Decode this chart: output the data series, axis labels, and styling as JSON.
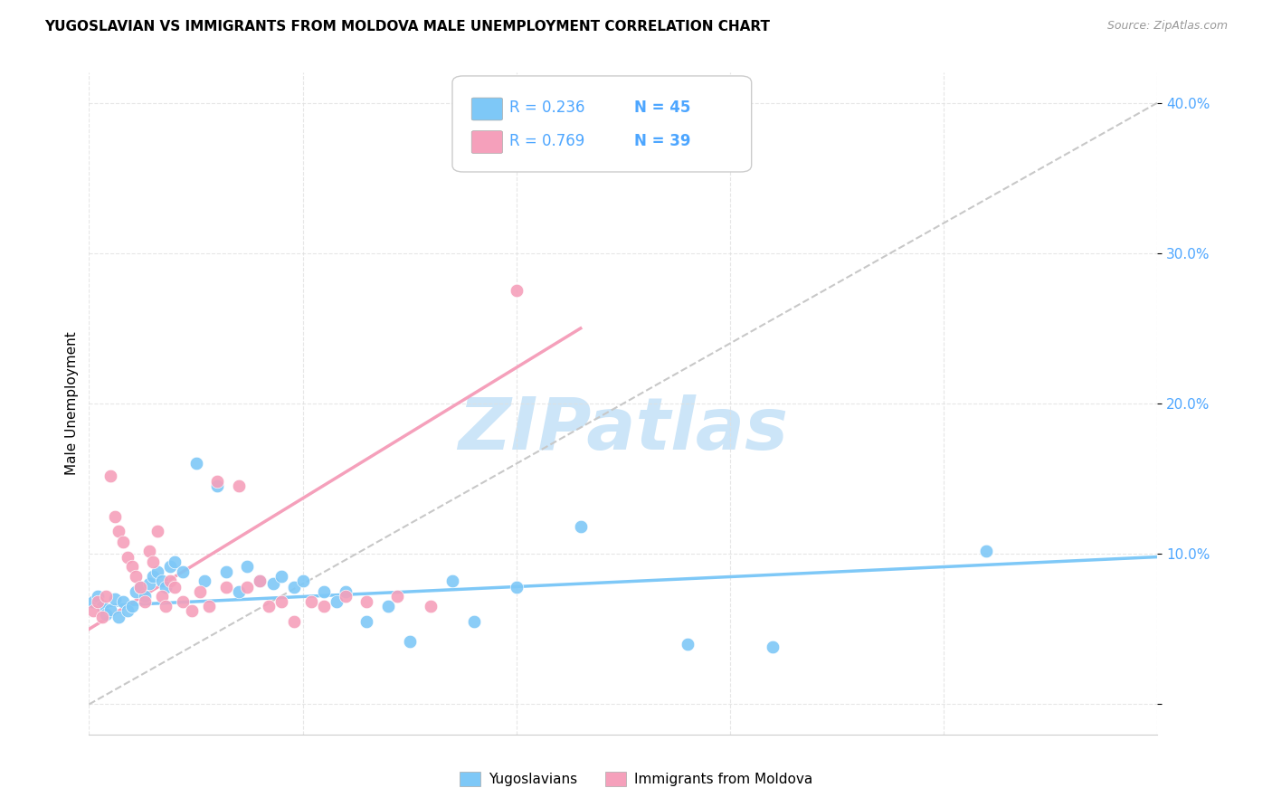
{
  "title": "YUGOSLAVIAN VS IMMIGRANTS FROM MOLDOVA MALE UNEMPLOYMENT CORRELATION CHART",
  "source": "Source: ZipAtlas.com",
  "ylabel": "Male Unemployment",
  "y_ticks": [
    0.0,
    0.1,
    0.2,
    0.3,
    0.4
  ],
  "y_tick_labels": [
    "",
    "10.0%",
    "20.0%",
    "30.0%",
    "40.0%"
  ],
  "xlim": [
    0.0,
    0.25
  ],
  "ylim": [
    -0.02,
    0.42
  ],
  "color_blue": "#7ec8f7",
  "color_pink": "#f5a0bb",
  "color_legend_blue": "#4da6ff",
  "watermark_text": "ZIPatlas",
  "watermark_color": "#cce5f8",
  "blue_scatter": [
    [
      0.001,
      0.068
    ],
    [
      0.002,
      0.072
    ],
    [
      0.003,
      0.065
    ],
    [
      0.004,
      0.06
    ],
    [
      0.005,
      0.063
    ],
    [
      0.006,
      0.07
    ],
    [
      0.007,
      0.058
    ],
    [
      0.008,
      0.068
    ],
    [
      0.009,
      0.062
    ],
    [
      0.01,
      0.065
    ],
    [
      0.011,
      0.075
    ],
    [
      0.012,
      0.078
    ],
    [
      0.013,
      0.072
    ],
    [
      0.014,
      0.08
    ],
    [
      0.015,
      0.085
    ],
    [
      0.016,
      0.088
    ],
    [
      0.017,
      0.082
    ],
    [
      0.018,
      0.078
    ],
    [
      0.019,
      0.092
    ],
    [
      0.02,
      0.095
    ],
    [
      0.022,
      0.088
    ],
    [
      0.025,
      0.16
    ],
    [
      0.027,
      0.082
    ],
    [
      0.03,
      0.145
    ],
    [
      0.032,
      0.088
    ],
    [
      0.035,
      0.075
    ],
    [
      0.037,
      0.092
    ],
    [
      0.04,
      0.082
    ],
    [
      0.043,
      0.08
    ],
    [
      0.045,
      0.085
    ],
    [
      0.048,
      0.078
    ],
    [
      0.05,
      0.082
    ],
    [
      0.055,
      0.075
    ],
    [
      0.058,
      0.068
    ],
    [
      0.06,
      0.075
    ],
    [
      0.065,
      0.055
    ],
    [
      0.07,
      0.065
    ],
    [
      0.075,
      0.042
    ],
    [
      0.085,
      0.082
    ],
    [
      0.09,
      0.055
    ],
    [
      0.1,
      0.078
    ],
    [
      0.115,
      0.118
    ],
    [
      0.14,
      0.04
    ],
    [
      0.16,
      0.038
    ],
    [
      0.21,
      0.102
    ]
  ],
  "pink_scatter": [
    [
      0.001,
      0.062
    ],
    [
      0.002,
      0.068
    ],
    [
      0.003,
      0.058
    ],
    [
      0.004,
      0.072
    ],
    [
      0.005,
      0.152
    ],
    [
      0.006,
      0.125
    ],
    [
      0.007,
      0.115
    ],
    [
      0.008,
      0.108
    ],
    [
      0.009,
      0.098
    ],
    [
      0.01,
      0.092
    ],
    [
      0.011,
      0.085
    ],
    [
      0.012,
      0.078
    ],
    [
      0.013,
      0.068
    ],
    [
      0.014,
      0.102
    ],
    [
      0.015,
      0.095
    ],
    [
      0.016,
      0.115
    ],
    [
      0.017,
      0.072
    ],
    [
      0.018,
      0.065
    ],
    [
      0.019,
      0.082
    ],
    [
      0.02,
      0.078
    ],
    [
      0.022,
      0.068
    ],
    [
      0.024,
      0.062
    ],
    [
      0.026,
      0.075
    ],
    [
      0.028,
      0.065
    ],
    [
      0.03,
      0.148
    ],
    [
      0.032,
      0.078
    ],
    [
      0.035,
      0.145
    ],
    [
      0.037,
      0.078
    ],
    [
      0.04,
      0.082
    ],
    [
      0.042,
      0.065
    ],
    [
      0.045,
      0.068
    ],
    [
      0.048,
      0.055
    ],
    [
      0.052,
      0.068
    ],
    [
      0.055,
      0.065
    ],
    [
      0.06,
      0.072
    ],
    [
      0.065,
      0.068
    ],
    [
      0.072,
      0.072
    ],
    [
      0.08,
      0.065
    ],
    [
      0.1,
      0.275
    ]
  ],
  "blue_line_x": [
    0.0,
    0.25
  ],
  "blue_line_y": [
    0.065,
    0.098
  ],
  "pink_line_x": [
    0.0,
    0.115
  ],
  "pink_line_y": [
    0.05,
    0.25
  ],
  "diag_line_x": [
    0.0,
    0.25
  ],
  "diag_line_y": [
    0.0,
    0.4
  ]
}
